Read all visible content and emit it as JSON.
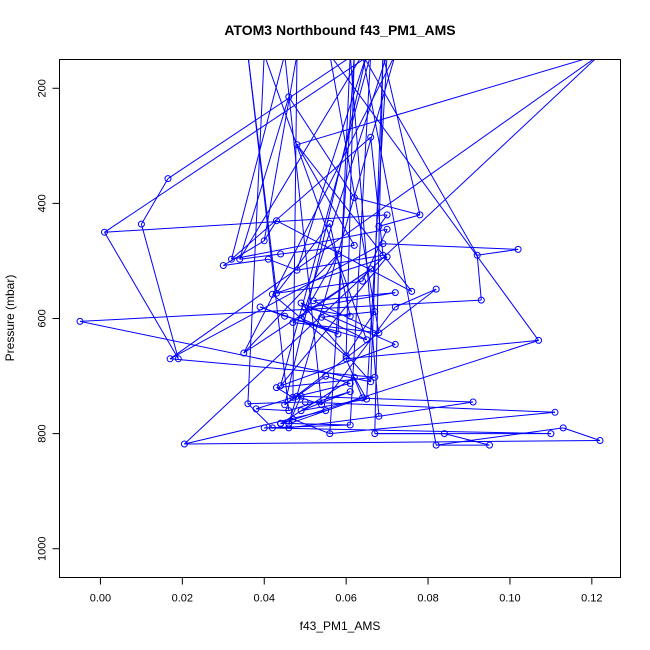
{
  "chart_data": {
    "type": "line",
    "title": "ATOM3 Northbound f43_PM1_AMS",
    "xlabel": "f43_PM1_AMS",
    "ylabel": "Pressure (mbar)",
    "xlim": [
      -0.01,
      0.127
    ],
    "ylim": [
      1050,
      150
    ],
    "y_axis_inverted": true,
    "x_ticks": [
      0.0,
      0.02,
      0.04,
      0.06,
      0.08,
      0.1,
      0.12
    ],
    "x_tick_labels": [
      "0.00",
      "0.02",
      "0.04",
      "0.06",
      "0.08",
      "0.10",
      "0.12"
    ],
    "y_ticks": [
      200,
      400,
      600,
      800,
      1000
    ],
    "y_tick_labels": [
      "200",
      "400",
      "600",
      "800",
      "1000"
    ],
    "grid": false,
    "legend": "none",
    "series_color": "#0000ff",
    "series": [
      {
        "marker": "open-circle",
        "x": [
          0.0165,
          0.01,
          0.019,
          0.001,
          0.07,
          0.068,
          0.078,
          0.062,
          0.046,
          0.034,
          0.044,
          0.062,
          0.048,
          0.076,
          0.043,
          0.04,
          0.03,
          0.041,
          0.048,
          0.069,
          0.066,
          0.032,
          0.07,
          0.064,
          0.043,
          0.056,
          0.061,
          0.05,
          0.072,
          0.052,
          0.068,
          0.047,
          0.066,
          0.035,
          0.058,
          0.049,
          0.058,
          0.039,
          0.045,
          0.065,
          0.054,
          0.067,
          0.06,
          0.042,
          0.07,
          0.044,
          0.072,
          0.049,
          0.066,
          -0.005,
          0.093,
          0.092,
          0.102,
          0.069,
          0.017,
          0.067,
          0.043,
          0.047,
          0.061,
          0.055,
          0.045,
          0.082,
          0.072,
          0.054,
          0.048,
          0.038,
          0.046,
          0.061,
          0.049,
          0.065,
          0.062,
          0.044,
          0.107,
          0.06,
          0.064,
          0.046,
          0.049,
          0.091,
          0.068,
          0.046,
          0.042,
          0.036,
          0.05,
          0.111,
          0.056,
          0.047,
          0.044,
          0.061,
          0.04,
          0.11,
          0.067,
          0.084,
          0.095,
          0.082,
          0.113,
          0.122,
          0.0205,
          0.055
        ],
        "y": [
          357,
          436,
          670,
          450,
          420,
          440,
          420,
          390,
          215,
          497,
          488,
          473,
          298,
          553,
          430,
          465,
          508,
          497,
          516,
          490,
          285,
          497,
          445,
          535,
          556,
          435,
          596,
          582,
          555,
          569,
          625,
          607,
          514,
          660,
          488,
          600,
          627,
          580,
          596,
          637,
          598,
          588,
          665,
          558,
          493,
          717,
          645,
          573,
          710,
          605,
          568,
          490,
          480,
          470,
          670,
          702,
          720,
          737,
          713,
          700,
          750,
          549,
          580,
          750,
          735,
          757,
          760,
          727,
          760,
          740,
          702,
          783,
          638,
          670,
          738,
          783,
          735,
          745,
          770,
          790,
          790,
          748,
          745,
          763,
          800,
          775,
          782,
          785,
          790,
          800,
          800,
          800,
          820,
          820,
          790,
          812,
          818,
          760
        ]
      }
    ]
  }
}
